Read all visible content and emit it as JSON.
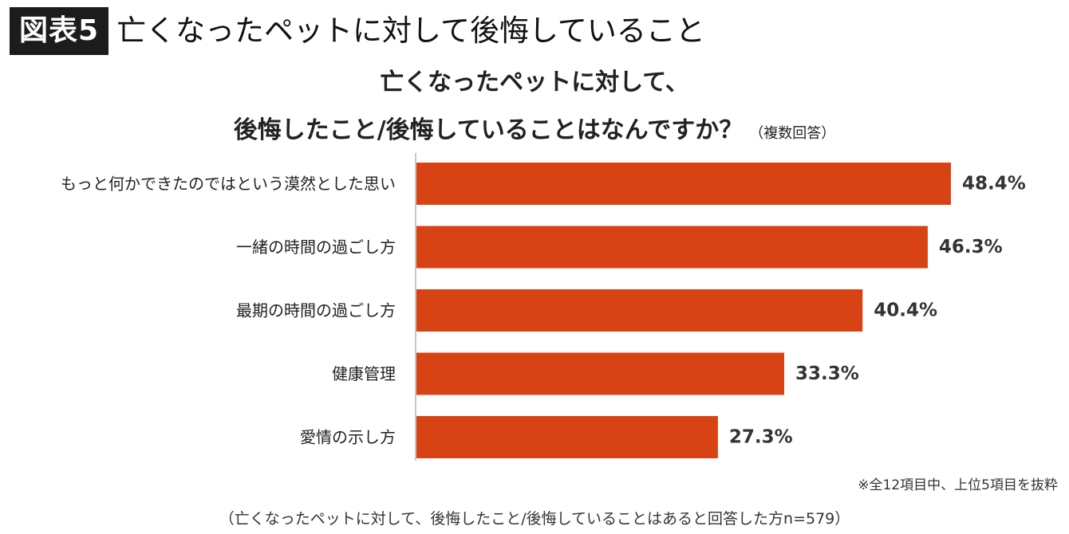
{
  "figure": {
    "badge": "図表5",
    "title": "亡くなったペットに対して後悔していること"
  },
  "chart_data": {
    "type": "bar",
    "orientation": "horizontal",
    "title_line1": "亡くなったペットに対して、",
    "title_line2": "後悔したこと/後悔していることはなんですか？",
    "title_note": "（複数回答）",
    "categories": [
      "もっと何かできたのではという漠然とした思い",
      "一緒の時間の過ごし方",
      "最期の時間の過ごし方",
      "健康管理",
      "愛情の示し方"
    ],
    "values": [
      48.4,
      46.3,
      40.4,
      33.3,
      27.3
    ],
    "value_labels": [
      "48.4%",
      "46.3%",
      "40.4%",
      "33.3%",
      "27.3%"
    ],
    "unit": "%",
    "bar_color": "#d84315",
    "axis_color": "#c8c8c8"
  },
  "footnote": "※全12項目中、上位5項目を抜粋",
  "bottom_note": "（亡くなったペットに対して、後悔したこと/後悔していることはあると回答した方n=579）"
}
